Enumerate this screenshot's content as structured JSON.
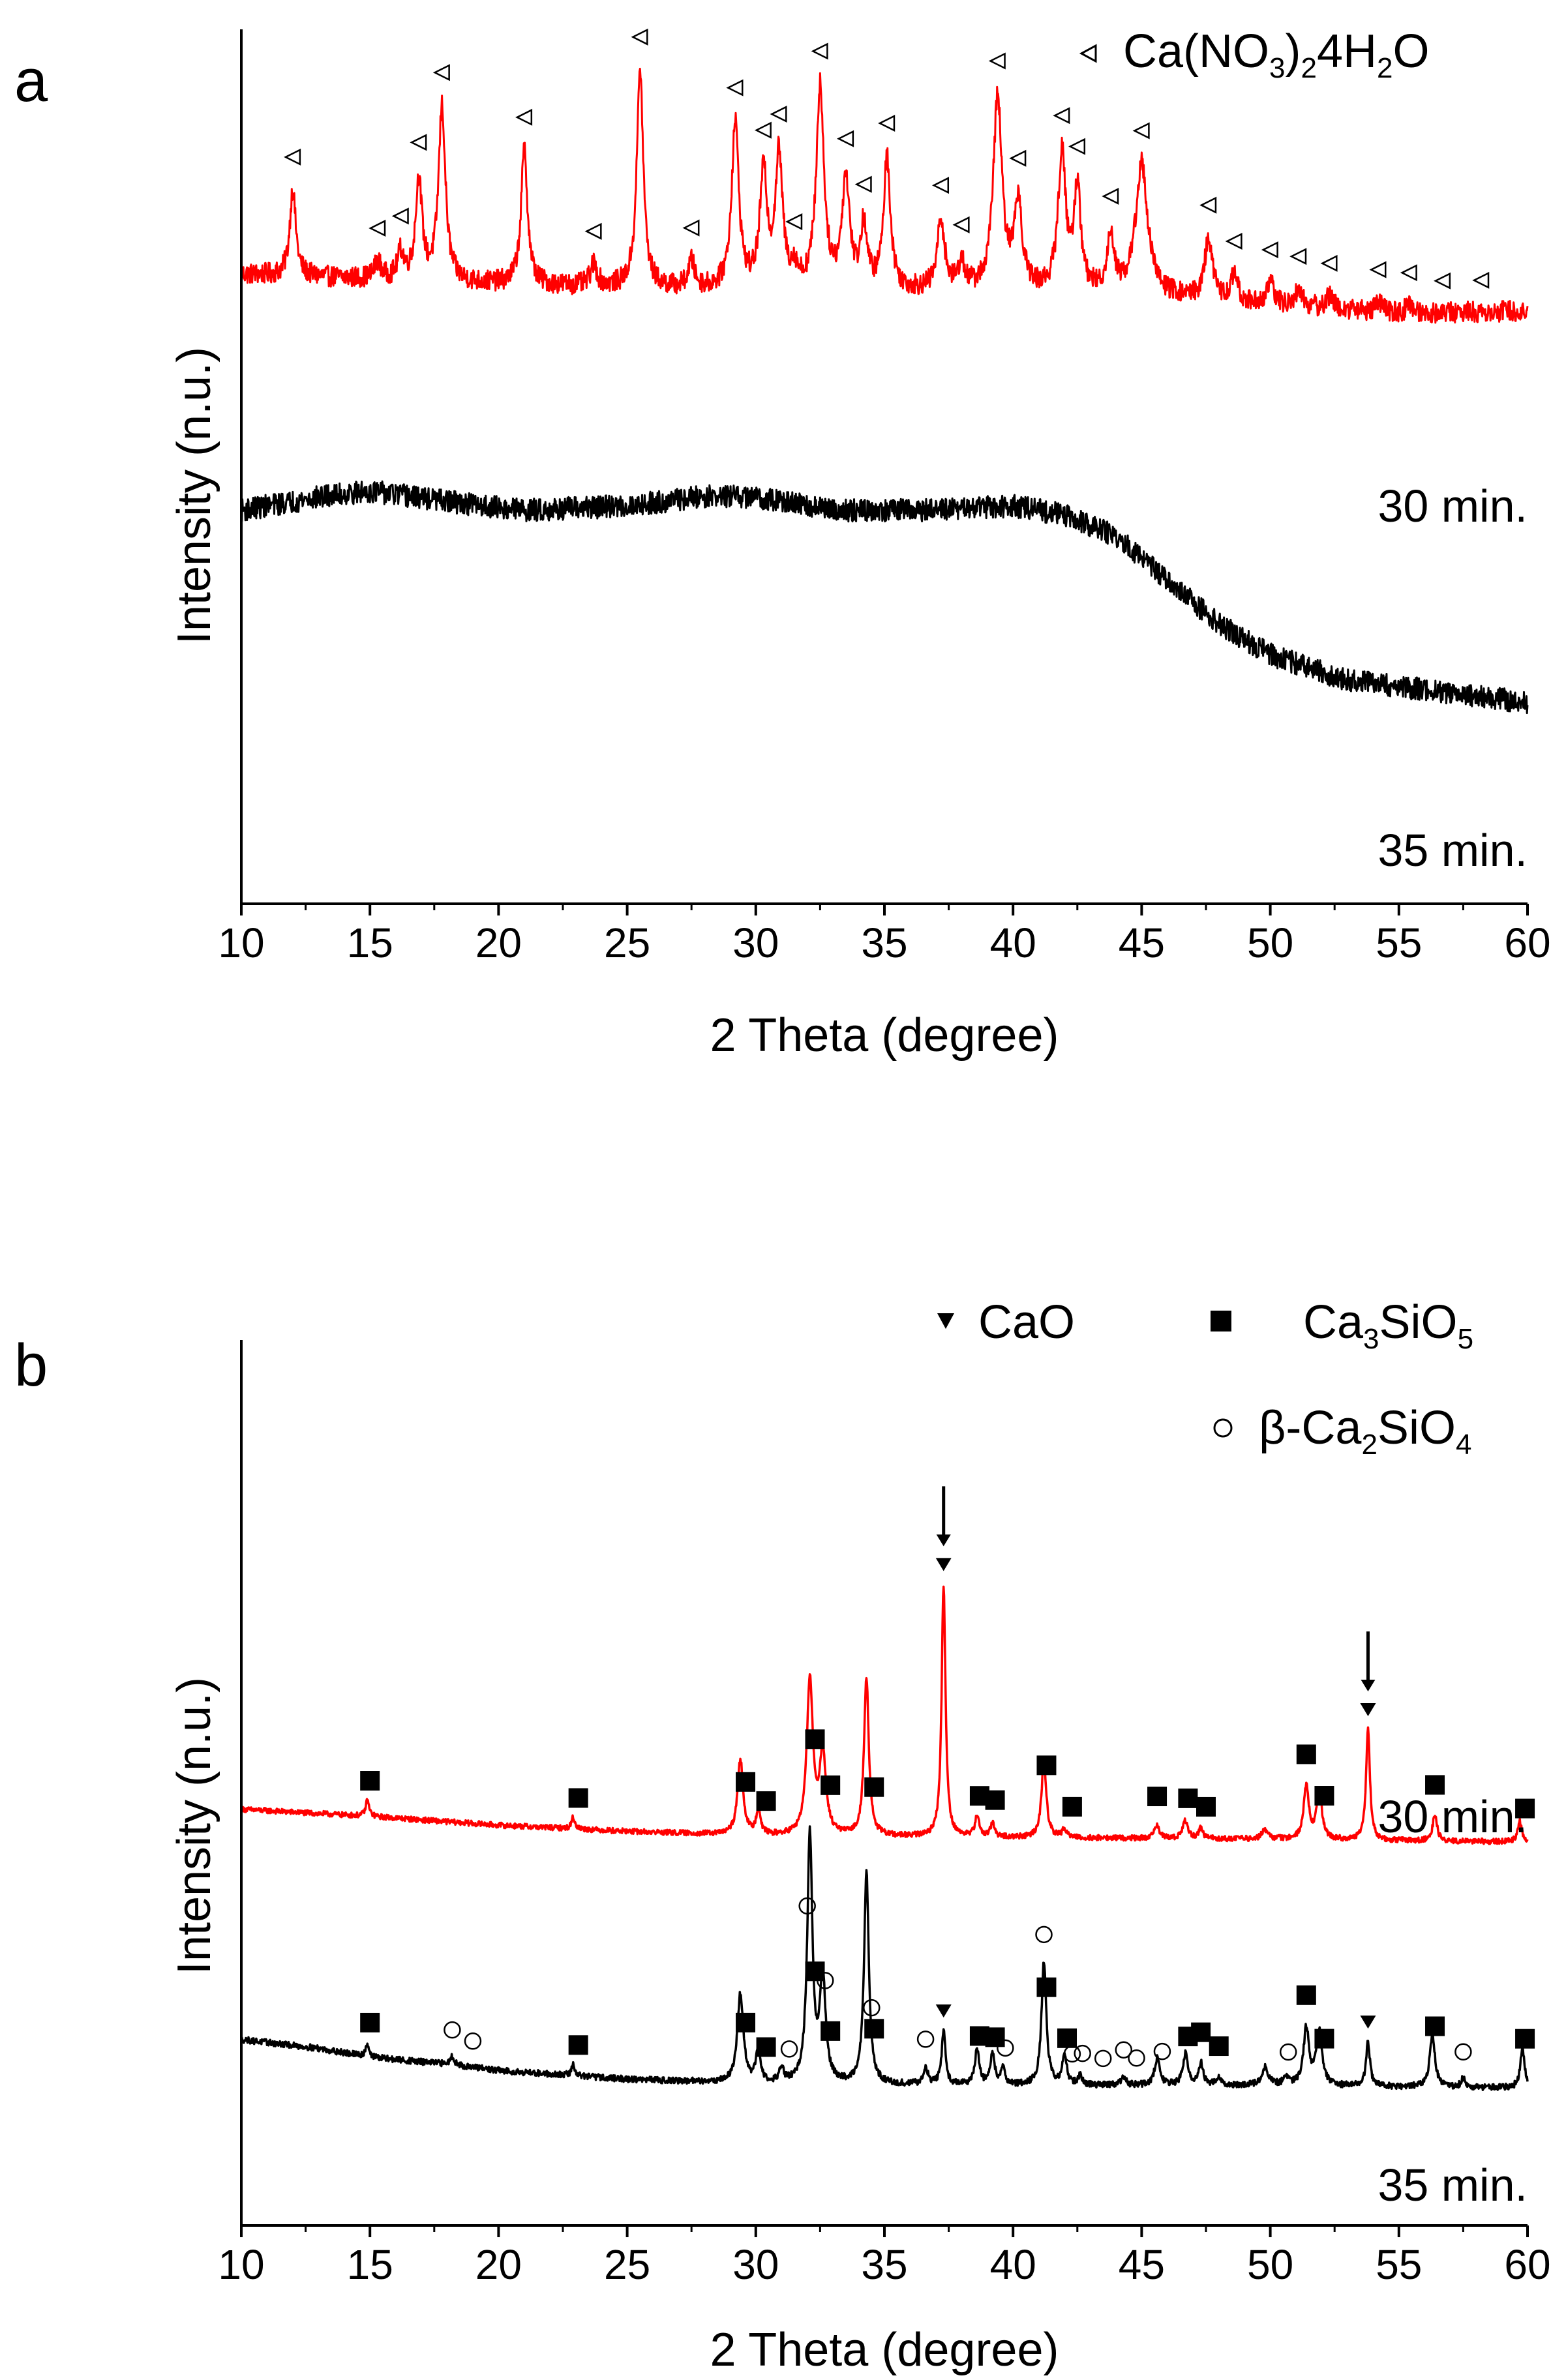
{
  "figure": {
    "panels": [
      {
        "letter": "a",
        "xlabel": "2 Theta (degree)",
        "ylabel": "Intensity (n.u.)",
        "legend": [
          {
            "marker": "triangle-left",
            "parts": [
              [
                "Ca(NO",
                false
              ],
              [
                "3",
                true
              ],
              [
                ")",
                false
              ],
              [
                "2",
                true
              ],
              [
                "4H",
                false
              ],
              [
                "2",
                true
              ],
              [
                "O",
                false
              ]
            ]
          }
        ],
        "trace_labels": [
          "30 min.",
          "35 min."
        ]
      },
      {
        "letter": "b",
        "xlabel": "2 Theta (degree)",
        "ylabel": "Intensity (n.u.)",
        "legend": [
          {
            "marker": "triangle-down",
            "parts": [
              [
                "CaO",
                false
              ]
            ]
          },
          {
            "marker": "square",
            "parts": [
              [
                "Ca",
                false
              ],
              [
                "3",
                true
              ],
              [
                "SiO",
                false
              ],
              [
                "5",
                true
              ]
            ]
          },
          {
            "marker": "circle",
            "parts": [
              [
                "β-Ca",
                false
              ],
              [
                "2",
                true
              ],
              [
                "SiO",
                false
              ],
              [
                "4",
                true
              ]
            ]
          }
        ],
        "trace_labels": [
          "30 min.",
          "35 min."
        ]
      }
    ],
    "colors": {
      "red": "#ff0000",
      "black": "#000000"
    }
  },
  "chart_data": [
    {
      "type": "line",
      "panel": "a",
      "title": "",
      "xlabel": "2 Theta (degree)",
      "ylabel": "Intensity (n.u.)",
      "xlim": [
        10,
        60
      ],
      "xticks": [
        10,
        15,
        20,
        25,
        30,
        35,
        40,
        45,
        50,
        55,
        60
      ],
      "yticks_visible": false,
      "ylim": [
        0,
        100
      ],
      "series": [
        {
          "name": "30 min.",
          "color": "#ff0000",
          "noise": 1.2,
          "baseline": [
            [
              10,
              72.0
            ],
            [
              20,
              70.8
            ],
            [
              30,
              70.0
            ],
            [
              40,
              70.0
            ],
            [
              45,
              69.5
            ],
            [
              50,
              68.5
            ],
            [
              55,
              67.5
            ],
            [
              60,
              67.8
            ]
          ],
          "peaks": [
            [
              12.0,
              10.0,
              0.14
            ],
            [
              15.3,
              2.0,
              0.15
            ],
            [
              16.2,
              3.0,
              0.15
            ],
            [
              16.9,
              11.5,
              0.15
            ],
            [
              17.8,
              20.0,
              0.16
            ],
            [
              21.0,
              15.5,
              0.15
            ],
            [
              23.7,
              2.5,
              0.15
            ],
            [
              25.5,
              25.0,
              0.15
            ],
            [
              27.5,
              3.0,
              0.15
            ],
            [
              29.2,
              19.0,
              0.17
            ],
            [
              30.3,
              13.0,
              0.17
            ],
            [
              30.9,
              15.0,
              0.17
            ],
            [
              31.5,
              2.0,
              0.15
            ],
            [
              32.5,
              23.0,
              0.18
            ],
            [
              33.5,
              12.5,
              0.18
            ],
            [
              34.2,
              7.0,
              0.15
            ],
            [
              35.1,
              15.0,
              0.16
            ],
            [
              37.2,
              8.0,
              0.17
            ],
            [
              38.0,
              3.0,
              0.15
            ],
            [
              39.4,
              22.0,
              0.2
            ],
            [
              40.2,
              10.0,
              0.18
            ],
            [
              41.9,
              15.5,
              0.18
            ],
            [
              42.5,
              11.5,
              0.16
            ],
            [
              43.8,
              6.5,
              0.16
            ],
            [
              45.0,
              15.0,
              0.28
            ],
            [
              47.6,
              7.0,
              0.18
            ],
            [
              48.6,
              3.0,
              0.15
            ],
            [
              50.0,
              2.5,
              0.15
            ],
            [
              51.1,
              2.0,
              0.15
            ],
            [
              52.3,
              1.5,
              0.15
            ],
            [
              54.2,
              1.2,
              0.15
            ],
            [
              55.4,
              1.0,
              0.15
            ]
          ]
        },
        {
          "name": "35 min.",
          "color": "#000000",
          "noise": 1.3,
          "baseline": [
            [
              10,
              45.0
            ],
            [
              13,
              46.5
            ],
            [
              15,
              47.2
            ],
            [
              18,
              46.0
            ],
            [
              21,
              45.0
            ],
            [
              25,
              45.5
            ],
            [
              28,
              46.6
            ],
            [
              30,
              46.5
            ],
            [
              33,
              45.0
            ],
            [
              37,
              45.0
            ],
            [
              40,
              45.5
            ],
            [
              42,
              44.5
            ],
            [
              44,
              42.0
            ],
            [
              46,
              37.0
            ],
            [
              48,
              32.0
            ],
            [
              50,
              28.5
            ],
            [
              53,
              25.5
            ],
            [
              56,
              24.5
            ],
            [
              60,
              23.0
            ]
          ],
          "peaks": []
        }
      ],
      "markers": [
        {
          "phase": "Ca(NO3)2·4H2O",
          "symbol": "triangle-left",
          "series": "30 min.",
          "x": [
            12.0,
            15.3,
            16.2,
            16.9,
            17.8,
            21.0,
            23.7,
            25.5,
            27.5,
            29.2,
            30.3,
            30.9,
            31.5,
            32.5,
            33.5,
            34.2,
            35.1,
            37.2,
            38.0,
            39.4,
            40.2,
            41.9,
            42.5,
            43.8,
            45.0,
            47.6,
            48.6,
            50.0,
            51.1,
            52.3,
            54.2,
            55.4,
            56.7,
            58.2
          ]
        }
      ]
    },
    {
      "type": "line",
      "panel": "b",
      "title": "",
      "xlabel": "2 Theta (degree)",
      "ylabel": "Intensity (n.u.)",
      "xlim": [
        10,
        60
      ],
      "xticks": [
        10,
        15,
        20,
        25,
        30,
        35,
        40,
        45,
        50,
        55,
        60
      ],
      "yticks_visible": false,
      "ylim": [
        0,
        100
      ],
      "series": [
        {
          "name": "30 min.",
          "color": "#ff0000",
          "noise": 0.3,
          "baseline": [
            [
              10,
              47.0
            ],
            [
              15,
              46.2
            ],
            [
              20,
              45.2
            ],
            [
              25,
              44.5
            ],
            [
              30,
              44.0
            ],
            [
              40,
              43.8
            ],
            [
              50,
              43.6
            ],
            [
              60,
              43.3
            ]
          ],
          "peaks": [
            [
              14.9,
              1.8,
              0.08
            ],
            [
              22.9,
              1.3,
              0.08
            ],
            [
              29.4,
              8.5,
              0.13
            ],
            [
              30.1,
              3.0,
              0.1
            ],
            [
              32.1,
              17.5,
              0.14
            ],
            [
              32.6,
              9.0,
              0.15
            ],
            [
              34.3,
              18.0,
              0.11
            ],
            [
              37.3,
              28.5,
              0.09
            ],
            [
              38.6,
              2.3,
              0.1
            ],
            [
              39.2,
              1.5,
              0.1
            ],
            [
              41.2,
              8.8,
              0.11
            ],
            [
              42.0,
              1.0,
              0.1
            ],
            [
              45.6,
              1.4,
              0.12
            ],
            [
              46.7,
              2.0,
              0.12
            ],
            [
              47.3,
              1.2,
              0.1
            ],
            [
              49.8,
              1.0,
              0.15
            ],
            [
              51.4,
              6.0,
              0.12
            ],
            [
              51.9,
              5.5,
              0.12
            ],
            [
              53.8,
              12.5,
              0.09
            ],
            [
              56.4,
              3.0,
              0.1
            ],
            [
              59.7,
              2.3,
              0.1
            ]
          ]
        },
        {
          "name": "35 min.",
          "color": "#000000",
          "noise": 0.35,
          "baseline": [
            [
              10,
              21.0
            ],
            [
              13,
              20.0
            ],
            [
              15,
              19.0
            ],
            [
              18,
              18.2
            ],
            [
              20,
              17.5
            ],
            [
              25,
              16.5
            ],
            [
              30,
              16.0
            ],
            [
              40,
              15.8
            ],
            [
              50,
              15.8
            ],
            [
              60,
              15.5
            ]
          ],
          "peaks": [
            [
              14.9,
              1.5,
              0.08
            ],
            [
              18.2,
              1.0,
              0.1
            ],
            [
              22.9,
              1.2,
              0.08
            ],
            [
              29.4,
              10.0,
              0.14
            ],
            [
              30.1,
              4.0,
              0.1
            ],
            [
              31.0,
              1.5,
              0.1
            ],
            [
              32.1,
              28.0,
              0.12
            ],
            [
              32.6,
              12.0,
              0.13
            ],
            [
              34.3,
              24.0,
              0.11
            ],
            [
              36.6,
              2.0,
              0.1
            ],
            [
              37.3,
              6.0,
              0.09
            ],
            [
              38.6,
              4.0,
              0.1
            ],
            [
              39.2,
              3.5,
              0.1
            ],
            [
              39.6,
              2.0,
              0.1
            ],
            [
              41.2,
              14.0,
              0.11
            ],
            [
              42.0,
              3.5,
              0.1
            ],
            [
              42.6,
              1.0,
              0.1
            ],
            [
              44.3,
              1.0,
              0.1
            ],
            [
              45.6,
              3.0,
              0.12
            ],
            [
              46.7,
              3.5,
              0.12
            ],
            [
              47.3,
              2.5,
              0.1
            ],
            [
              48.0,
              1.0,
              0.1
            ],
            [
              49.8,
              2.0,
              0.15
            ],
            [
              50.6,
              1.0,
              0.1
            ],
            [
              51.4,
              6.5,
              0.13
            ],
            [
              51.9,
              6.0,
              0.13
            ],
            [
              53.8,
              5.0,
              0.09
            ],
            [
              56.3,
              6.0,
              0.12
            ],
            [
              57.5,
              1.0,
              0.1
            ],
            [
              59.8,
              4.5,
              0.1
            ]
          ]
        }
      ],
      "markers": [
        {
          "phase": "CaO",
          "symbol": "triangle-down",
          "series": "30 min.",
          "x": [
            37.3,
            53.8
          ]
        },
        {
          "phase": "CaO",
          "symbol": "triangle-down",
          "series": "35 min.",
          "x": [
            37.3,
            53.8
          ]
        },
        {
          "phase": "Ca3SiO5",
          "symbol": "square",
          "series": "30 min.",
          "x": [
            15.0,
            23.1,
            29.6,
            30.4,
            32.3,
            32.9,
            34.6,
            38.7,
            39.3,
            41.3,
            42.3,
            45.6,
            46.8,
            47.5,
            51.4,
            52.1,
            56.4,
            59.9
          ]
        },
        {
          "phase": "Ca3SiO5",
          "symbol": "square",
          "series": "35 min.",
          "x": [
            15.0,
            23.1,
            29.6,
            30.4,
            32.3,
            32.9,
            34.6,
            38.7,
            39.3,
            41.3,
            42.1,
            46.8,
            47.3,
            48.0,
            51.4,
            52.1,
            56.4,
            59.9
          ]
        },
        {
          "phase": "β-Ca2SiO4",
          "symbol": "circle",
          "series": "35 min.",
          "x": [
            18.2,
            19.0,
            31.3,
            32.0,
            32.7,
            34.5,
            36.6,
            39.7,
            41.2,
            42.3,
            42.7,
            43.5,
            44.3,
            44.8,
            45.8,
            50.7,
            57.5
          ]
        }
      ],
      "annotations": [
        {
          "type": "arrow",
          "series": "30 min.",
          "x": 37.3,
          "label": ""
        },
        {
          "type": "arrow",
          "series": "30 min.",
          "x": 53.8,
          "label": ""
        }
      ]
    }
  ]
}
